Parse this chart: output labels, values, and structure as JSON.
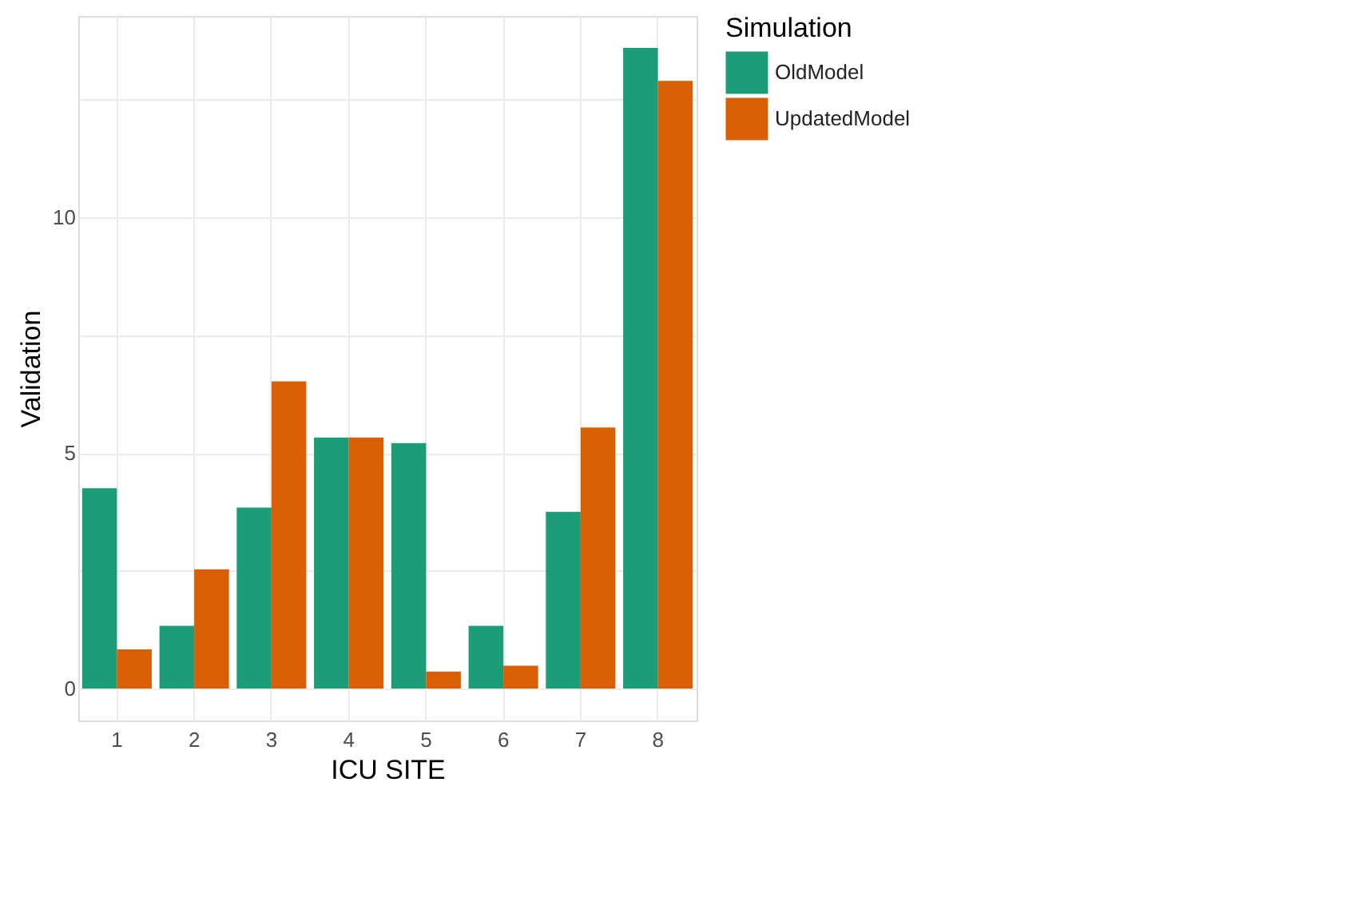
{
  "chart_data": {
    "type": "bar",
    "xlabel": "ICU SITE",
    "ylabel": "Validation",
    "legend_title": "Simulation",
    "categories": [
      "1",
      "2",
      "3",
      "4",
      "5",
      "6",
      "7",
      "8"
    ],
    "series": [
      {
        "name": "OldModel",
        "color": "#1b9e77",
        "values": [
          4.25,
          1.33,
          3.84,
          5.33,
          5.21,
          1.33,
          3.75,
          13.6
        ]
      },
      {
        "name": "UpdatedModel",
        "color": "#d95f02",
        "values": [
          0.83,
          2.53,
          6.52,
          5.33,
          0.36,
          0.48,
          5.54,
          12.9
        ]
      }
    ],
    "ylim": [
      -0.68,
      14.28
    ],
    "yticks": [
      0,
      {
        "value": 2.5,
        "label": null
      },
      5,
      {
        "value": 7.5,
        "label": null
      },
      10,
      {
        "value": 12.5,
        "label": null
      }
    ],
    "grid": true,
    "legend": "right"
  }
}
